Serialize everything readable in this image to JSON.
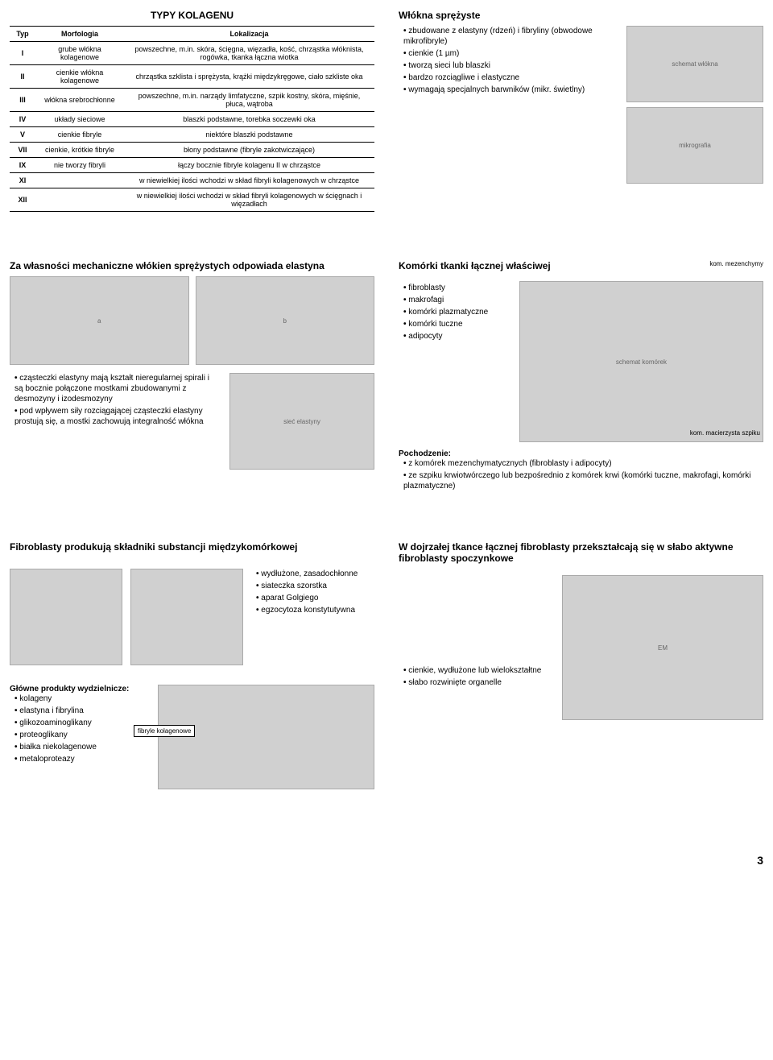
{
  "row1": {
    "left": {
      "title": "TYPY KOLAGENU",
      "head": [
        "Typ",
        "Morfologia",
        "Lokalizacja"
      ],
      "rows": [
        [
          "I",
          "grube włókna kolagenowe",
          "powszechne, m.in. skóra, ścięgna, więzadła, kość, chrząstka włóknista, rogówka, tkanka łączna wiotka"
        ],
        [
          "II",
          "cienkie włókna kolagenowe",
          "chrząstka szklista i sprężysta, krążki międzykręgowe, ciało szkliste oka"
        ],
        [
          "III",
          "włókna srebrochłonne",
          "powszechne, m.in. narządy limfatyczne, szpik kostny, skóra, mięśnie, płuca, wątroba"
        ],
        [
          "IV",
          "układy sieciowe",
          "blaszki podstawne, torebka soczewki oka"
        ],
        [
          "V",
          "cienkie fibryle",
          "niektóre blaszki podstawne"
        ],
        [
          "VII",
          "cienkie, krótkie fibryle",
          "błony podstawne (fibryle zakotwiczające)"
        ],
        [
          "IX",
          "nie tworzy fibryli",
          "łączy bocznie fibryle kolagenu II w chrząstce"
        ],
        [
          "XI",
          "",
          "w niewielkiej ilości wchodzi w skład fibryli kolagenowych w chrząstce"
        ],
        [
          "XII",
          "",
          "w niewielkiej ilości wchodzi w skład fibryli kolagenowych w ścięgnach i więzadłach"
        ]
      ]
    },
    "right": {
      "title": "Włókna sprężyste",
      "bullets": [
        "zbudowane z elastyny (rdzeń) i fibryliny (obwodowe mikrofibryle)",
        "cienkie (1 µm)",
        "tworzą sieci lub blaszki",
        "bardzo rozciągliwe i elastyczne",
        "wymagają specjalnych barwników (mikr. świetlny)"
      ]
    }
  },
  "row2": {
    "left": {
      "title": "Za własności mechaniczne włókien sprężystych odpowiada elastyna",
      "bullets": [
        "cząsteczki elastyny mają kształt nieregularnej spirali i są bocznie połączone mostkami zbudowanymi z desmozyny i izodesmozyny",
        "pod wpływem siły rozciągającej cząsteczki elastyny prostują się, a mostki zachowują integralność włókna"
      ]
    },
    "right": {
      "title": "Komórki tkanki łącznej właściwej",
      "label1": "kom. mezenchymy",
      "label2": "kom. macierzysta szpiku",
      "bullets": [
        "fibroblasty",
        "makrofagi",
        "komórki plazmatyczne",
        "komórki tuczne",
        "adipocyty"
      ],
      "origin_title": "Pochodzenie:",
      "origin": [
        "z komórek mezenchymatycznych (fibroblasty i adipocyty)",
        "ze szpiku krwiotwórczego lub bezpośrednio z komórek krwi (komórki tuczne, makrofagi, komórki plazmatyczne)"
      ]
    }
  },
  "row3": {
    "left": {
      "title": "Fibroblasty produkują składniki substancji międzykomórkowej",
      "feat": [
        "wydłużone, zasadochłonne",
        "siateczka szorstka",
        "aparat Golgiego",
        "egzocytoza konstytutywna"
      ],
      "products_title": "Główne produkty wydzielnicze:",
      "products": [
        "kolageny",
        "elastyna i fibrylina",
        "glikozoaminoglikany",
        "proteoglikany",
        "białka niekolagenowe",
        "metaloproteazy"
      ],
      "callout": "fibryle kolagenowe"
    },
    "right": {
      "title": "W dojrzałej tkance łącznej fibroblasty przekształcają się w słabo aktywne fibroblasty spoczynkowe",
      "bullets": [
        "cienkie, wydłużone lub wielokształtne",
        "słabo rozwinięte organelle"
      ]
    }
  },
  "page_number": "3"
}
